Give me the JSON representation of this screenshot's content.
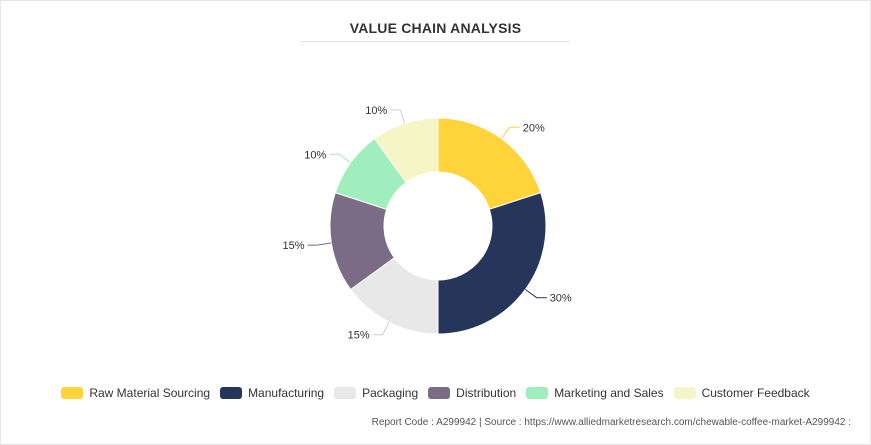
{
  "chart_data": {
    "type": "pie",
    "title": "VALUE CHAIN ANALYSIS",
    "categories": [
      "Raw Material Sourcing",
      "Manufacturing",
      "Packaging",
      "Distribution",
      "Marketing and Sales",
      "Customer Feedback"
    ],
    "values": [
      20,
      30,
      15,
      15,
      10,
      10
    ],
    "labels": [
      "20%",
      "30%",
      "15%",
      "15%",
      "10%",
      "10%"
    ],
    "colors": [
      "#FFD43B",
      "#25365A",
      "#E8E8E8",
      "#7C6B84",
      "#A0EDBE",
      "#F6F5C6"
    ],
    "legend_position": "bottom"
  },
  "footer": {
    "text": "Report Code : A299942  |  Source : https://www.alliedmarketresearch.com/chewable-coffee-market-A299942 :"
  }
}
